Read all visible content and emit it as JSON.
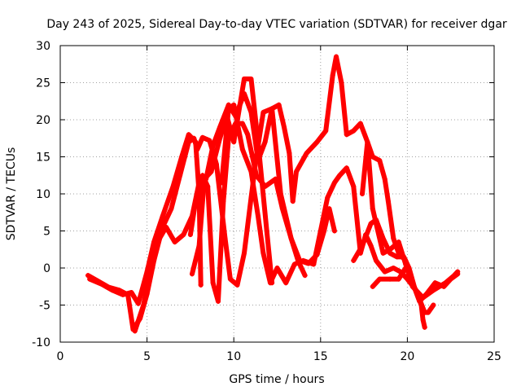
{
  "chart_data": {
    "type": "scatter",
    "title": "Day 243 of 2025, Sidereal Day-to-day VTEC variation (SDTVAR) for receiver dgar",
    "xlabel": "GPS time / hours",
    "ylabel": "SDTVAR / TECUs",
    "xlim": [
      0,
      25
    ],
    "ylim": [
      -10,
      30
    ],
    "x_ticks": [
      0,
      5,
      10,
      15,
      20,
      25
    ],
    "y_ticks": [
      -10,
      -5,
      0,
      5,
      10,
      15,
      20,
      25,
      30
    ],
    "grid": true,
    "legend": "none",
    "marker": "+",
    "color": "#ff0000",
    "series": [
      {
        "name": "trace-1",
        "points": [
          [
            1.6,
            -1.0
          ],
          [
            2.2,
            -1.8
          ],
          [
            2.8,
            -2.6
          ],
          [
            3.4,
            -3.0
          ],
          [
            3.9,
            -3.6
          ],
          [
            4.2,
            -8.3
          ],
          [
            4.6,
            -6.8
          ],
          [
            5.0,
            -3.5
          ],
          [
            5.4,
            1.0
          ],
          [
            5.9,
            5.5
          ],
          [
            6.4,
            8.0
          ],
          [
            6.9,
            12.5
          ],
          [
            7.4,
            17.0
          ],
          [
            7.7,
            17.5
          ],
          [
            7.9,
            16.0
          ],
          [
            8.2,
            17.6
          ],
          [
            8.6,
            17.2
          ],
          [
            9.0,
            14.0
          ],
          [
            9.5,
            4.0
          ],
          [
            9.8,
            -1.5
          ],
          [
            10.2,
            -2.3
          ],
          [
            10.6,
            2.0
          ],
          [
            11.0,
            9.5
          ],
          [
            11.3,
            15.0
          ],
          [
            11.7,
            21.0
          ],
          [
            12.2,
            21.5
          ],
          [
            12.7,
            10.0
          ],
          [
            13.3,
            4.0
          ],
          [
            13.8,
            1.0
          ],
          [
            14.3,
            0.6
          ],
          [
            14.8,
            1.8
          ],
          [
            15.2,
            5.0
          ],
          [
            15.5,
            8.0
          ],
          [
            15.8,
            5.0
          ]
        ]
      },
      {
        "name": "trace-2",
        "points": [
          [
            1.7,
            -1.5
          ],
          [
            2.4,
            -2.2
          ],
          [
            3.0,
            -3.0
          ],
          [
            3.6,
            -3.6
          ],
          [
            4.1,
            -3.3
          ],
          [
            4.5,
            -4.8
          ],
          [
            5.0,
            -0.5
          ],
          [
            5.4,
            3.5
          ],
          [
            5.9,
            7.0
          ],
          [
            6.5,
            11.0
          ],
          [
            7.0,
            15.0
          ],
          [
            7.4,
            18.0
          ],
          [
            7.8,
            17.0
          ],
          [
            8.0,
            10.0
          ],
          [
            8.1,
            -2.3
          ]
        ]
      },
      {
        "name": "trace-3",
        "points": [
          [
            4.3,
            -8.5
          ],
          [
            4.8,
            -5.0
          ],
          [
            5.2,
            0.0
          ],
          [
            5.6,
            3.5
          ],
          [
            6.1,
            5.5
          ],
          [
            6.6,
            3.5
          ],
          [
            7.1,
            4.5
          ],
          [
            7.6,
            7.0
          ],
          [
            8.0,
            11.5
          ],
          [
            8.4,
            12.0
          ],
          [
            8.8,
            16.5
          ],
          [
            9.2,
            19.0
          ],
          [
            9.7,
            22.0
          ],
          [
            10.1,
            20.5
          ],
          [
            10.6,
            23.5
          ],
          [
            11.0,
            21.0
          ],
          [
            11.4,
            14.5
          ],
          [
            11.8,
            17.0
          ],
          [
            12.2,
            21.5
          ],
          [
            12.6,
            22.0
          ],
          [
            12.9,
            19.0
          ],
          [
            13.2,
            15.5
          ],
          [
            13.4,
            9.0
          ],
          [
            13.6,
            13.0
          ],
          [
            14.2,
            15.5
          ],
          [
            14.8,
            17.0
          ],
          [
            15.3,
            18.5
          ],
          [
            15.7,
            26.0
          ],
          [
            15.9,
            28.5
          ],
          [
            16.2,
            25.0
          ],
          [
            16.5,
            18.0
          ],
          [
            16.9,
            18.5
          ],
          [
            17.3,
            19.5
          ],
          [
            17.7,
            17.0
          ],
          [
            18.0,
            8.0
          ],
          [
            18.2,
            6.0
          ],
          [
            18.6,
            2.0
          ],
          [
            19.0,
            2.5
          ],
          [
            19.5,
            3.5
          ],
          [
            19.9,
            0.5
          ],
          [
            20.3,
            -2.5
          ],
          [
            20.9,
            -4.0
          ],
          [
            21.5,
            -3.0
          ],
          [
            22.2,
            -2.0
          ],
          [
            22.7,
            -1.0
          ],
          [
            22.9,
            -0.5
          ]
        ]
      },
      {
        "name": "trace-4",
        "points": [
          [
            7.6,
            -0.8
          ],
          [
            8.0,
            3.0
          ],
          [
            8.3,
            12.0
          ],
          [
            8.7,
            13.0
          ],
          [
            9.2,
            17.5
          ],
          [
            9.6,
            20.5
          ],
          [
            10.0,
            17.0
          ],
          [
            10.6,
            25.5
          ],
          [
            11.0,
            25.5
          ],
          [
            11.4,
            17.0
          ],
          [
            11.9,
            5.0
          ],
          [
            12.2,
            -2.0
          ]
        ]
      },
      {
        "name": "trace-5",
        "points": [
          [
            7.5,
            4.5
          ],
          [
            7.8,
            9.0
          ],
          [
            8.2,
            12.5
          ],
          [
            8.5,
            11.0
          ],
          [
            8.8,
            -2.0
          ],
          [
            9.1,
            -4.5
          ],
          [
            9.4,
            9.0
          ],
          [
            9.7,
            17.5
          ],
          [
            10.1,
            19.5
          ],
          [
            10.5,
            19.5
          ],
          [
            10.8,
            18.0
          ],
          [
            11.3,
            12.5
          ],
          [
            11.8,
            11.0
          ],
          [
            12.4,
            12.0
          ],
          [
            12.8,
            8.0
          ],
          [
            13.3,
            4.0
          ],
          [
            13.7,
            1.0
          ],
          [
            14.1,
            -1.0
          ]
        ]
      },
      {
        "name": "trace-6",
        "points": [
          [
            9.3,
            11.5
          ],
          [
            9.7,
            21.5
          ],
          [
            10.0,
            22.0
          ],
          [
            10.5,
            16.0
          ],
          [
            11.0,
            13.0
          ],
          [
            11.4,
            7.0
          ],
          [
            11.7,
            2.0
          ],
          [
            12.1,
            -2.0
          ],
          [
            12.5,
            0.0
          ],
          [
            13.0,
            -2.0
          ],
          [
            13.5,
            0.5
          ],
          [
            14.0,
            1.0
          ],
          [
            14.6,
            0.5
          ],
          [
            15.0,
            5.0
          ],
          [
            15.4,
            9.5
          ],
          [
            15.8,
            11.5
          ],
          [
            16.1,
            12.5
          ],
          [
            16.5,
            13.5
          ],
          [
            16.9,
            11.0
          ],
          [
            17.3,
            2.0
          ],
          [
            17.6,
            4.5
          ],
          [
            17.9,
            3.0
          ],
          [
            18.2,
            1.0
          ],
          [
            18.7,
            -0.5
          ],
          [
            19.2,
            0.0
          ],
          [
            19.6,
            -0.5
          ],
          [
            20.0,
            -1.5
          ],
          [
            20.5,
            -3.0
          ],
          [
            21.0,
            -6.0
          ],
          [
            21.2,
            -6.0
          ],
          [
            21.5,
            -5.0
          ]
        ]
      },
      {
        "name": "trace-7",
        "points": [
          [
            16.9,
            1.0
          ],
          [
            17.4,
            3.0
          ],
          [
            17.9,
            6.0
          ],
          [
            18.2,
            6.5
          ],
          [
            18.6,
            4.0
          ],
          [
            19.0,
            2.0
          ],
          [
            19.4,
            1.5
          ],
          [
            19.8,
            1.5
          ],
          [
            20.1,
            0.0
          ],
          [
            20.4,
            -2.5
          ],
          [
            20.8,
            -5.0
          ],
          [
            20.9,
            -7.0
          ],
          [
            21.0,
            -8.0
          ]
        ]
      },
      {
        "name": "trace-8",
        "points": [
          [
            17.4,
            10.0
          ],
          [
            17.7,
            17.0
          ],
          [
            18.0,
            15.0
          ],
          [
            18.4,
            14.5
          ],
          [
            18.7,
            12.0
          ],
          [
            18.9,
            9.0
          ],
          [
            19.2,
            4.0
          ],
          [
            19.5,
            2.0
          ],
          [
            19.9,
            1.0
          ],
          [
            20.3,
            -2.0
          ],
          [
            20.7,
            -4.5
          ],
          [
            21.1,
            -3.5
          ],
          [
            21.6,
            -2.0
          ],
          [
            22.1,
            -2.5
          ],
          [
            22.5,
            -1.5
          ],
          [
            22.9,
            -0.8
          ]
        ]
      },
      {
        "name": "trace-9",
        "points": [
          [
            18.0,
            -2.5
          ],
          [
            18.4,
            -1.5
          ],
          [
            19.0,
            -1.5
          ],
          [
            19.5,
            -1.5
          ],
          [
            19.9,
            0.0
          ]
        ]
      }
    ]
  }
}
